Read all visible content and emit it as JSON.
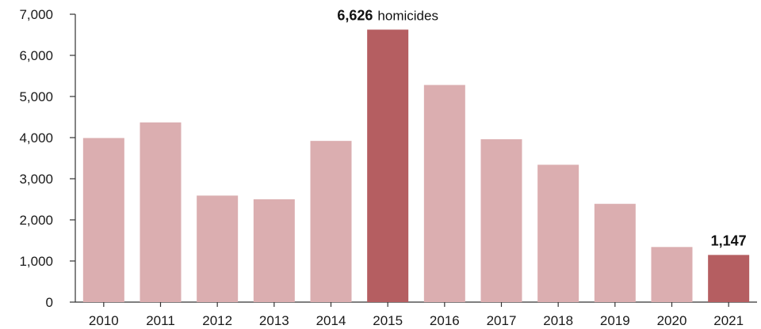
{
  "chart_data": {
    "type": "bar",
    "categories": [
      "2010",
      "2011",
      "2012",
      "2013",
      "2014",
      "2015",
      "2016",
      "2017",
      "2018",
      "2019",
      "2020",
      "2021"
    ],
    "values": [
      3990,
      4370,
      2590,
      2500,
      3920,
      6626,
      5280,
      3960,
      3340,
      2390,
      1340,
      1147
    ],
    "highlighted": [
      "2015",
      "2021"
    ],
    "ylim": [
      0,
      7000
    ],
    "yticks": [
      0,
      1000,
      2000,
      3000,
      4000,
      5000,
      6000,
      7000
    ],
    "ytick_labels": [
      "0",
      "1,000",
      "2,000",
      "3,000",
      "4,000",
      "5,000",
      "6,000",
      "7,000"
    ],
    "title": "",
    "xlabel": "",
    "ylabel": "",
    "grid": false,
    "annotations": [
      {
        "category": "2015",
        "value_text": "6,626",
        "unit_text": "homicides"
      },
      {
        "category": "2021",
        "value_text": "1,147",
        "unit_text": ""
      }
    ],
    "colors": {
      "bar": "#dbaeb0",
      "highlight": "#b55e61",
      "axis": "#333333",
      "text": "#1a1a1a"
    }
  }
}
